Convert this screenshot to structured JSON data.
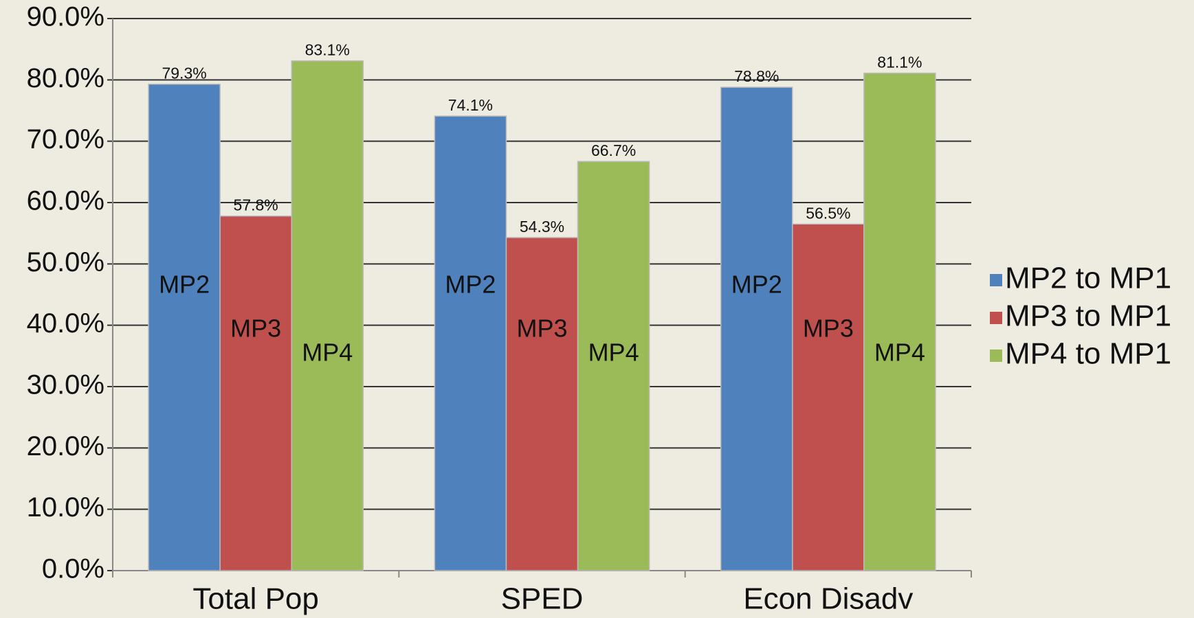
{
  "chart_data": {
    "type": "bar",
    "categories": [
      "Total Pop",
      "SPED",
      "Econ Disadv"
    ],
    "series": [
      {
        "name": "MP2 to MP1",
        "label": "MP2",
        "color": "#4f81bd",
        "values": [
          79.3,
          74.1,
          78.8
        ],
        "value_labels": [
          "79.3%",
          "74.1%",
          "78.8%"
        ]
      },
      {
        "name": "MP3 to MP1",
        "label": "MP3",
        "color": "#c0504d",
        "values": [
          57.8,
          54.3,
          56.5
        ],
        "value_labels": [
          "57.8%",
          "54.3%",
          "56.5%"
        ]
      },
      {
        "name": "MP4 to MP1",
        "label": "MP4",
        "color": "#9bbb59",
        "values": [
          83.1,
          66.7,
          81.1
        ],
        "value_labels": [
          "83.1%",
          "66.7%",
          "81.1%"
        ]
      }
    ],
    "ylim": [
      0,
      90
    ],
    "yticks": [
      {
        "value": 0,
        "label": "0.0%"
      },
      {
        "value": 10,
        "label": "10.0%"
      },
      {
        "value": 20,
        "label": "20.0%"
      },
      {
        "value": 30,
        "label": "30.0%"
      },
      {
        "value": 40,
        "label": "40.0%"
      },
      {
        "value": 50,
        "label": "50.0%"
      },
      {
        "value": 60,
        "label": "60.0%"
      },
      {
        "value": 70,
        "label": "70.0%"
      },
      {
        "value": 80,
        "label": "80.0%"
      },
      {
        "value": 90,
        "label": "90.0%"
      }
    ],
    "grid": true,
    "legend": "right"
  }
}
